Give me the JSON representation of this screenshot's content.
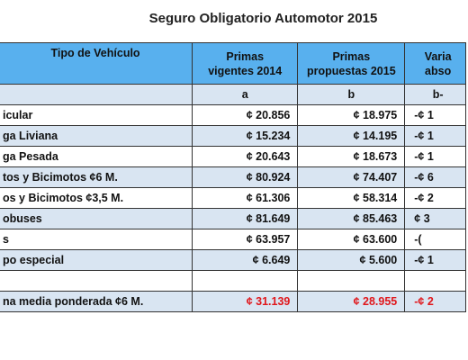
{
  "title": "Seguro Obligatorio Automotor 2015",
  "table": {
    "header": [
      "Tipo de Vehículo",
      "Primas vigentes 2014",
      "Primas propuestas 2015",
      "Varia abso"
    ],
    "subheader": [
      "",
      "a",
      "b",
      "b-"
    ],
    "rows": [
      [
        "icular",
        "¢ 20.856",
        "¢ 18.975",
        "-¢ 1"
      ],
      [
        "ga Liviana",
        "¢ 15.234",
        "¢ 14.195",
        "-¢ 1"
      ],
      [
        "ga Pesada",
        "¢ 20.643",
        "¢ 18.673",
        "-¢ 1"
      ],
      [
        "tos y Bicimotos ¢6 M.",
        "¢ 80.924",
        "¢ 74.407",
        "-¢ 6"
      ],
      [
        "os y Bicimotos ¢3,5 M.",
        "¢ 61.306",
        "¢ 58.314",
        "-¢ 2"
      ],
      [
        "obuses",
        "¢ 81.649",
        "¢ 85.463",
        "¢ 3"
      ],
      [
        "s",
        "¢ 63.957",
        "¢ 63.600",
        "-("
      ],
      [
        "po especial",
        "¢ 6.649",
        "¢ 5.600",
        "-¢ 1"
      ]
    ],
    "total": [
      "na media ponderada ¢6 M.",
      "¢ 31.139",
      "¢ 28.955",
      "-¢ 2"
    ]
  }
}
